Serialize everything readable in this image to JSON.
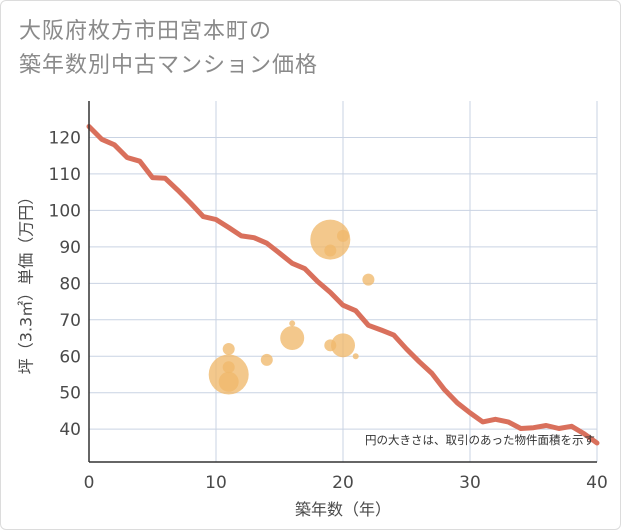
{
  "header": {
    "title_line1": "大阪府枚方市田宮本町の",
    "title_line2": "築年数別中古マンション価格"
  },
  "chart_data": {
    "type": "scatter",
    "title": "大阪府枚方市田宮本町の築年数別中古マンション価格",
    "xlabel": "築年数（年）",
    "ylabel": "坪（3.3㎡）単価（万円）",
    "xlim": [
      0,
      40
    ],
    "ylim": [
      31,
      130
    ],
    "xticks": [
      0,
      10,
      20,
      30,
      40
    ],
    "yticks": [
      40,
      50,
      60,
      70,
      80,
      90,
      100,
      110,
      120
    ],
    "grid": true,
    "note": "円の大きさは、取引のあった物件面積を示す",
    "colors": {
      "line": "#d9705c",
      "bubble": "#f0b96b",
      "grid": "#c9d3e3",
      "axis": "#333333"
    },
    "series": [
      {
        "type": "line",
        "x": [
          0,
          1,
          2,
          3,
          4,
          5,
          6,
          7,
          8,
          9,
          10,
          11,
          12,
          13,
          14,
          15,
          16,
          17,
          18,
          19,
          20,
          21,
          22,
          23,
          24,
          25,
          26,
          27,
          28,
          29,
          30,
          31,
          32,
          33,
          34,
          35,
          36,
          37,
          38,
          39,
          40
        ],
        "y": [
          123,
          119.5,
          118,
          114.5,
          113.5,
          109,
          108.8,
          105.5,
          102,
          98.3,
          97.5,
          95.3,
          93,
          92.5,
          91,
          88.3,
          85.5,
          84,
          80.5,
          77.5,
          74,
          72.5,
          68.5,
          67.2,
          65.8,
          62,
          58.5,
          55.3,
          50.8,
          47.2,
          44.5,
          42,
          42.7,
          42,
          40.2,
          40.4,
          41,
          40.2,
          40.8,
          38.7,
          36.2
        ]
      },
      {
        "type": "bubble",
        "points": [
          {
            "x": 11,
            "y": 55,
            "size": 40
          },
          {
            "x": 11,
            "y": 53,
            "size": 20
          },
          {
            "x": 11,
            "y": 57,
            "size": 12
          },
          {
            "x": 11,
            "y": 62,
            "size": 12
          },
          {
            "x": 14,
            "y": 59,
            "size": 12
          },
          {
            "x": 16,
            "y": 65,
            "size": 24
          },
          {
            "x": 16,
            "y": 69,
            "size": 6
          },
          {
            "x": 19,
            "y": 92,
            "size": 40
          },
          {
            "x": 19,
            "y": 89,
            "size": 12
          },
          {
            "x": 19,
            "y": 63,
            "size": 12
          },
          {
            "x": 20,
            "y": 63,
            "size": 24
          },
          {
            "x": 20,
            "y": 93,
            "size": 12
          },
          {
            "x": 21,
            "y": 60,
            "size": 6
          },
          {
            "x": 22,
            "y": 81,
            "size": 12
          }
        ]
      }
    ]
  }
}
